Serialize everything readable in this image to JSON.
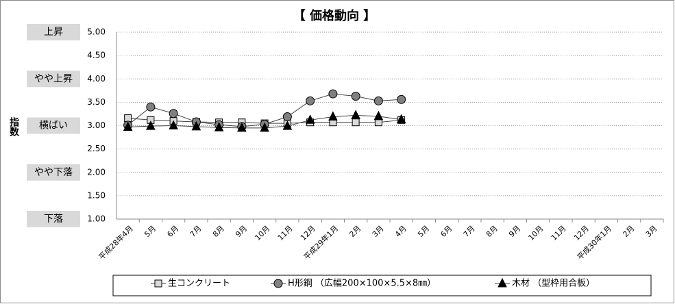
{
  "chart_data": {
    "type": "line",
    "title": "【 価格動向 】",
    "ylabel": "指数",
    "categories": [
      "平成28年4月",
      "5月",
      "6月",
      "7月",
      "8月",
      "9月",
      "10月",
      "11月",
      "12月",
      "平成29年1月",
      "2月",
      "3月",
      "4月",
      "5月",
      "6月",
      "7月",
      "8月",
      "9月",
      "10月",
      "11月",
      "12月",
      "平成30年1月",
      "2月",
      "3月"
    ],
    "series": [
      {
        "name": "生コンクリート",
        "color": "#d9d9d9",
        "marker": "square",
        "values": [
          3.16,
          3.12,
          3.1,
          3.08,
          3.07,
          3.07,
          3.05,
          3.05,
          3.07,
          3.07,
          3.07,
          3.07,
          3.12,
          null,
          null,
          null,
          null,
          null,
          null,
          null,
          null,
          null,
          null,
          null
        ]
      },
      {
        "name": "H形鋼 （広幅200×100×5.5×8㎜）",
        "color": "#808080",
        "marker": "circle",
        "values": [
          3.01,
          3.4,
          3.26,
          3.08,
          3.02,
          2.98,
          3.03,
          3.19,
          3.53,
          3.68,
          3.63,
          3.53,
          3.56,
          null,
          null,
          null,
          null,
          null,
          null,
          null,
          null,
          null,
          null,
          null
        ]
      },
      {
        "name": "木材 （型枠用合板）",
        "color": "#000000",
        "marker": "triangle",
        "values": [
          2.97,
          2.99,
          3.0,
          2.98,
          2.96,
          2.95,
          2.95,
          2.99,
          3.12,
          3.19,
          3.22,
          3.2,
          3.13,
          null,
          null,
          null,
          null,
          null,
          null,
          null,
          null,
          null,
          null,
          null
        ]
      }
    ],
    "ylim": [
      1,
      5
    ],
    "yticks": [
      {
        "value": 1,
        "label": "1.00"
      },
      {
        "value": 1.5,
        "label": "1.50"
      },
      {
        "value": 2,
        "label": "2.00"
      },
      {
        "value": 2.5,
        "label": "2.50"
      },
      {
        "value": 3,
        "label": "3.00"
      },
      {
        "value": 3.5,
        "label": "3.50"
      },
      {
        "value": 4,
        "label": "4.00"
      },
      {
        "value": 4.5,
        "label": "4.50"
      },
      {
        "value": 5,
        "label": "5.00"
      }
    ],
    "level_labels": [
      {
        "value": 5,
        "label": "上昇"
      },
      {
        "value": 4,
        "label": "やや上昇"
      },
      {
        "value": 3,
        "label": "横ばい"
      },
      {
        "value": 2,
        "label": "やや下落"
      },
      {
        "value": 1,
        "label": "下落"
      }
    ],
    "grid": true
  }
}
